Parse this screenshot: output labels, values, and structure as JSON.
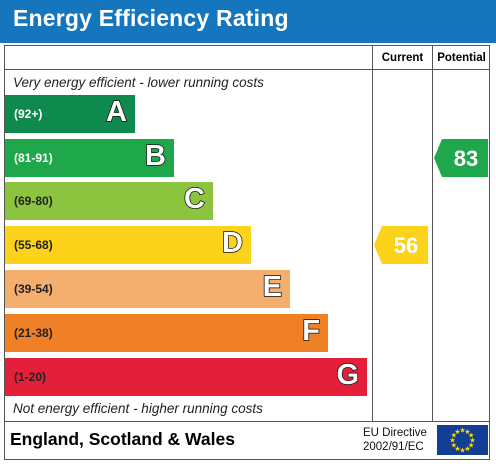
{
  "header": {
    "title": "Energy Efficiency Rating"
  },
  "columns": {
    "current": "Current",
    "potential": "Potential"
  },
  "captions": {
    "top": "Very energy efficient - lower running costs",
    "bottom": "Not energy efficient - higher running costs"
  },
  "footer": {
    "region": "England, Scotland & Wales",
    "directive_line1": "EU Directive",
    "directive_line2": "2002/91/EC",
    "flag_icon": "eu-flag-icon"
  },
  "chart_data": {
    "type": "bar",
    "title": "Energy Efficiency Rating",
    "bands": [
      {
        "letter": "A",
        "range": "(92+)",
        "min": 92,
        "max": 100,
        "color": "#0f8a4f",
        "range_color": "#ffffff"
      },
      {
        "letter": "B",
        "range": "(81-91)",
        "min": 81,
        "max": 91,
        "color": "#1fa74c",
        "range_color": "#ffffff"
      },
      {
        "letter": "C",
        "range": "(69-80)",
        "min": 69,
        "max": 80,
        "color": "#8cc43f",
        "range_color": "#222222"
      },
      {
        "letter": "D",
        "range": "(55-68)",
        "min": 55,
        "max": 68,
        "color": "#fdd21b",
        "range_color": "#222222"
      },
      {
        "letter": "E",
        "range": "(39-54)",
        "min": 39,
        "max": 54,
        "color": "#f4ae6e",
        "range_color": "#222222"
      },
      {
        "letter": "F",
        "range": "(21-38)",
        "min": 21,
        "max": 38,
        "color": "#ef8026",
        "range_color": "#222222"
      },
      {
        "letter": "G",
        "range": "(1-20)",
        "min": 1,
        "max": 20,
        "color": "#e41f3a",
        "range_color": "#222222"
      }
    ],
    "current": {
      "value": 56,
      "label": "56",
      "band": "D",
      "color": "#fdd21b"
    },
    "potential": {
      "value": 83,
      "label": "83",
      "band": "B",
      "color": "#1fa74c"
    }
  }
}
